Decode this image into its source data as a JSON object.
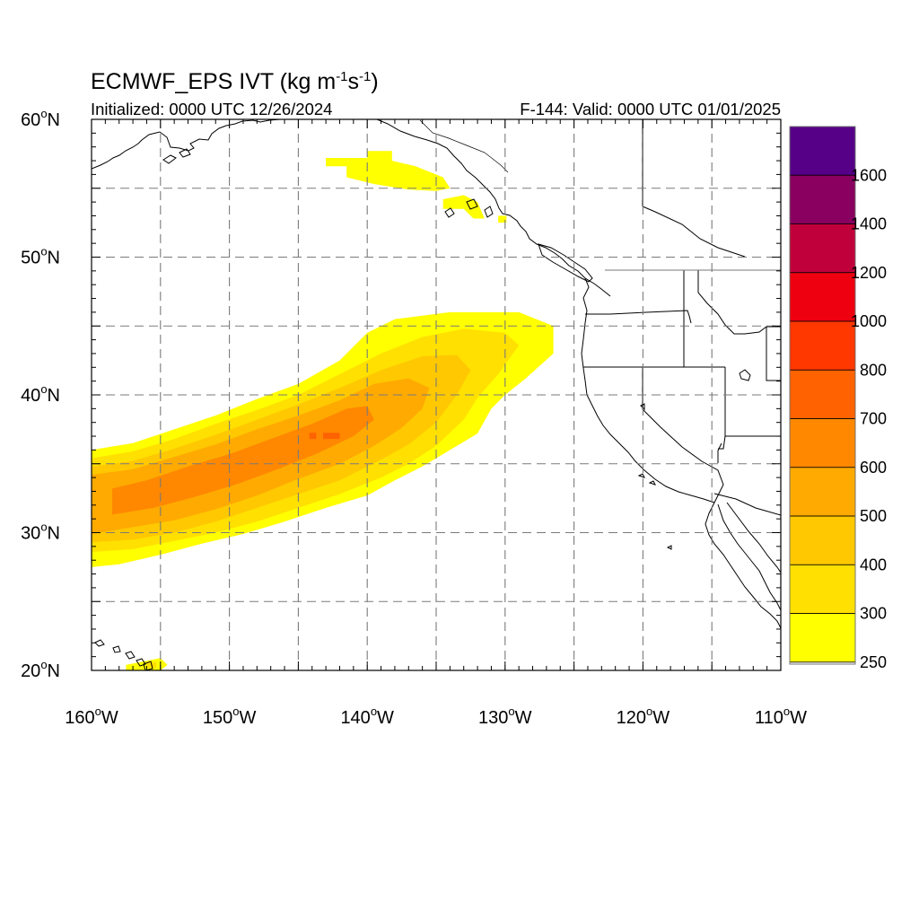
{
  "title": {
    "main": "ECMWF_EPS IVT (kg m",
    "sup1": "-1",
    "mid": "s",
    "sup2": "-1",
    "close": ")"
  },
  "subtitle": {
    "left": "Initialized: 0000 UTC 12/26/2024",
    "right": "F-144: Valid: 0000 UTC 01/01/2025"
  },
  "map": {
    "lon_range": [
      -160,
      -110
    ],
    "lat_range": [
      20,
      60
    ],
    "grid_lon_step": 5,
    "grid_lat_step": 5,
    "grid": "dashed",
    "x_ticks": [
      {
        "value": -160,
        "label": "160",
        "suffix": "W"
      },
      {
        "value": -150,
        "label": "150",
        "suffix": "W"
      },
      {
        "value": -140,
        "label": "140",
        "suffix": "W"
      },
      {
        "value": -130,
        "label": "130",
        "suffix": "W"
      },
      {
        "value": -120,
        "label": "120",
        "suffix": "W"
      },
      {
        "value": -110,
        "label": "110",
        "suffix": "W"
      }
    ],
    "y_ticks": [
      {
        "value": 60,
        "label": "60",
        "suffix": "N"
      },
      {
        "value": 50,
        "label": "50",
        "suffix": "N"
      },
      {
        "value": 40,
        "label": "40",
        "suffix": "N"
      },
      {
        "value": 30,
        "label": "30",
        "suffix": "N"
      },
      {
        "value": 20,
        "label": "20",
        "suffix": "N"
      }
    ]
  },
  "colorbar": {
    "labels": [
      "250",
      "300",
      "400",
      "500",
      "600",
      "700",
      "800",
      "1000",
      "1200",
      "1400",
      "1600"
    ],
    "colors": [
      "#ffffff",
      "#ffff00",
      "#ffe000",
      "#ffc800",
      "#ffaa00",
      "#ff8800",
      "#ff6200",
      "#ff3800",
      "#ee0010",
      "#c0003a",
      "#8a0060",
      "#560088"
    ]
  },
  "chart_data": {
    "type": "heatmap",
    "field": "IVT",
    "units": "kg m-1 s-1",
    "features": [
      {
        "feature": "atmospheric river plume",
        "levels": [
          {
            "threshold": 250,
            "color": "#ffff00",
            "polygon": [
              [
                -160,
                27.5
              ],
              [
                -160,
                36
              ],
              [
                -157,
                36.5
              ],
              [
                -154,
                37.5
              ],
              [
                -151,
                38.5
              ],
              [
                -148,
                39.7
              ],
              [
                -145,
                40.8
              ],
              [
                -142,
                42.5
              ],
              [
                -140,
                44.5
              ],
              [
                -138,
                45.5
              ],
              [
                -134,
                46
              ],
              [
                -129,
                46
              ],
              [
                -126.5,
                45
              ],
              [
                -126.5,
                43
              ],
              [
                -128.5,
                41.2
              ],
              [
                -130,
                40
              ],
              [
                -131,
                39
              ],
              [
                -132,
                37.2
              ],
              [
                -134,
                36
              ],
              [
                -136,
                34.8
              ],
              [
                -138,
                33.8
              ],
              [
                -140,
                32.7
              ],
              [
                -143,
                31.8
              ],
              [
                -146,
                30.8
              ],
              [
                -149,
                29.9
              ],
              [
                -152,
                29.2
              ],
              [
                -155,
                28.4
              ],
              [
                -158,
                27.7
              ]
            ]
          },
          {
            "threshold": 300,
            "color": "#ffe000",
            "polygon": [
              [
                -160,
                28.6
              ],
              [
                -160,
                35.4
              ],
              [
                -157,
                35.9
              ],
              [
                -154,
                36.8
              ],
              [
                -151,
                37.9
              ],
              [
                -148,
                38.9
              ],
              [
                -145,
                40
              ],
              [
                -142,
                41.5
              ],
              [
                -139,
                43
              ],
              [
                -136,
                44.2
              ],
              [
                -133,
                44.8
              ],
              [
                -130,
                44.5
              ],
              [
                -129,
                43.6
              ],
              [
                -130.5,
                41.5
              ],
              [
                -132,
                39.8
              ],
              [
                -133,
                38.2
              ],
              [
                -135,
                36.3
              ],
              [
                -137,
                35
              ],
              [
                -139,
                34
              ],
              [
                -142,
                32.8
              ],
              [
                -145,
                31.8
              ],
              [
                -148,
                30.8
              ],
              [
                -151,
                30
              ],
              [
                -154,
                29.4
              ],
              [
                -157,
                28.8
              ]
            ]
          },
          {
            "threshold": 400,
            "color": "#ffc800",
            "polygon": [
              [
                -160,
                29.3
              ],
              [
                -160,
                34.8
              ],
              [
                -157,
                35.2
              ],
              [
                -154,
                36.1
              ],
              [
                -151,
                37.1
              ],
              [
                -148,
                38.2
              ],
              [
                -145,
                39.3
              ],
              [
                -142,
                40.5
              ],
              [
                -139,
                41.8
              ],
              [
                -136,
                42.8
              ],
              [
                -133.5,
                42.9
              ],
              [
                -132.5,
                41.8
              ],
              [
                -133.5,
                40
              ],
              [
                -135,
                38
              ],
              [
                -137,
                36.4
              ],
              [
                -139,
                35.3
              ],
              [
                -142,
                33.8
              ],
              [
                -145,
                32.8
              ],
              [
                -148,
                31.8
              ],
              [
                -151,
                30.8
              ],
              [
                -154,
                30
              ],
              [
                -157,
                29.5
              ]
            ]
          },
          {
            "threshold": 500,
            "color": "#ffaa00",
            "polygon": [
              [
                -160,
                29.9
              ],
              [
                -160,
                34.2
              ],
              [
                -157,
                34.6
              ],
              [
                -154,
                35.5
              ],
              [
                -151,
                36.4
              ],
              [
                -148,
                37.5
              ],
              [
                -145,
                38.5
              ],
              [
                -142,
                39.6
              ],
              [
                -139.5,
                40.8
              ],
              [
                -137,
                41.2
              ],
              [
                -135.5,
                40.5
              ],
              [
                -136,
                39
              ],
              [
                -137.5,
                37.6
              ],
              [
                -139.5,
                36.3
              ],
              [
                -142,
                35
              ],
              [
                -145,
                33.9
              ],
              [
                -148,
                32.7
              ],
              [
                -151,
                31.7
              ],
              [
                -154,
                30.9
              ],
              [
                -157,
                30.4
              ]
            ]
          },
          {
            "threshold": 600,
            "color": "#ff8800",
            "polygon": [
              [
                -158.5,
                31.3
              ],
              [
                -158.5,
                33.2
              ],
              [
                -156,
                33.8
              ],
              [
                -153,
                34.8
              ],
              [
                -150,
                35.7
              ],
              [
                -147,
                36.8
              ],
              [
                -144,
                37.9
              ],
              [
                -141.5,
                39
              ],
              [
                -140,
                39.2
              ],
              [
                -139.5,
                38.2
              ],
              [
                -141,
                37
              ],
              [
                -143.5,
                35.8
              ],
              [
                -146.5,
                34.6
              ],
              [
                -149.5,
                33.5
              ],
              [
                -152.5,
                32.6
              ],
              [
                -155.5,
                31.8
              ]
            ]
          },
          {
            "threshold": 700,
            "color": "#ff6200",
            "polygon": [
              [
                -144.2,
                36.8
              ],
              [
                -144.2,
                37.25
              ],
              [
                -143.7,
                37.25
              ],
              [
                -143.7,
                36.8
              ]
            ]
          },
          {
            "threshold": 700,
            "color": "#ff6200",
            "polygon": [
              [
                -143.2,
                36.8
              ],
              [
                -143.2,
                37.25
              ],
              [
                -142,
                37.25
              ],
              [
                -142,
                36.8
              ]
            ]
          }
        ]
      },
      {
        "feature": "Gulf of Alaska patch",
        "levels": [
          {
            "threshold": 250,
            "color": "#ffff00",
            "polygon": [
              [
                -143,
                56.6
              ],
              [
                -143,
                57.2
              ],
              [
                -140,
                57.2
              ],
              [
                -140,
                57.7
              ],
              [
                -138.2,
                57.7
              ],
              [
                -138.2,
                57
              ],
              [
                -136.5,
                56.6
              ],
              [
                -134.5,
                55.8
              ],
              [
                -134,
                55
              ],
              [
                -135,
                54.8
              ],
              [
                -137,
                54.9
              ],
              [
                -139.5,
                55.3
              ],
              [
                -141.5,
                55.8
              ],
              [
                -141.5,
                56.6
              ]
            ]
          },
          {
            "threshold": 250,
            "color": "#ffff00",
            "polygon": [
              [
                -134.5,
                54.2
              ],
              [
                -134.5,
                53.5
              ],
              [
                -133,
                53.5
              ],
              [
                -132.3,
                52.8
              ],
              [
                -131.5,
                52.8
              ],
              [
                -132,
                54
              ],
              [
                -133,
                54.5
              ]
            ]
          },
          {
            "threshold": 250,
            "color": "#ffff00",
            "polygon": [
              [
                -130.5,
                53
              ],
              [
                -130.5,
                52.5
              ],
              [
                -129.9,
                52.5
              ],
              [
                -129.9,
                53
              ]
            ]
          }
        ]
      },
      {
        "feature": "Hawaii patch",
        "levels": [
          {
            "threshold": 250,
            "color": "#ffff00",
            "polygon": [
              [
                -157.5,
                20
              ],
              [
                -157.5,
                20.4
              ],
              [
                -155,
                20.9
              ],
              [
                -154.5,
                20.4
              ],
              [
                -155,
                20
              ]
            ]
          },
          {
            "threshold": 300,
            "color": "#ffe000",
            "polygon": [
              [
                -156,
                20.2
              ],
              [
                -156,
                20.6
              ],
              [
                -155.3,
                20.6
              ],
              [
                -155.3,
                20.2
              ]
            ]
          }
        ]
      }
    ]
  }
}
